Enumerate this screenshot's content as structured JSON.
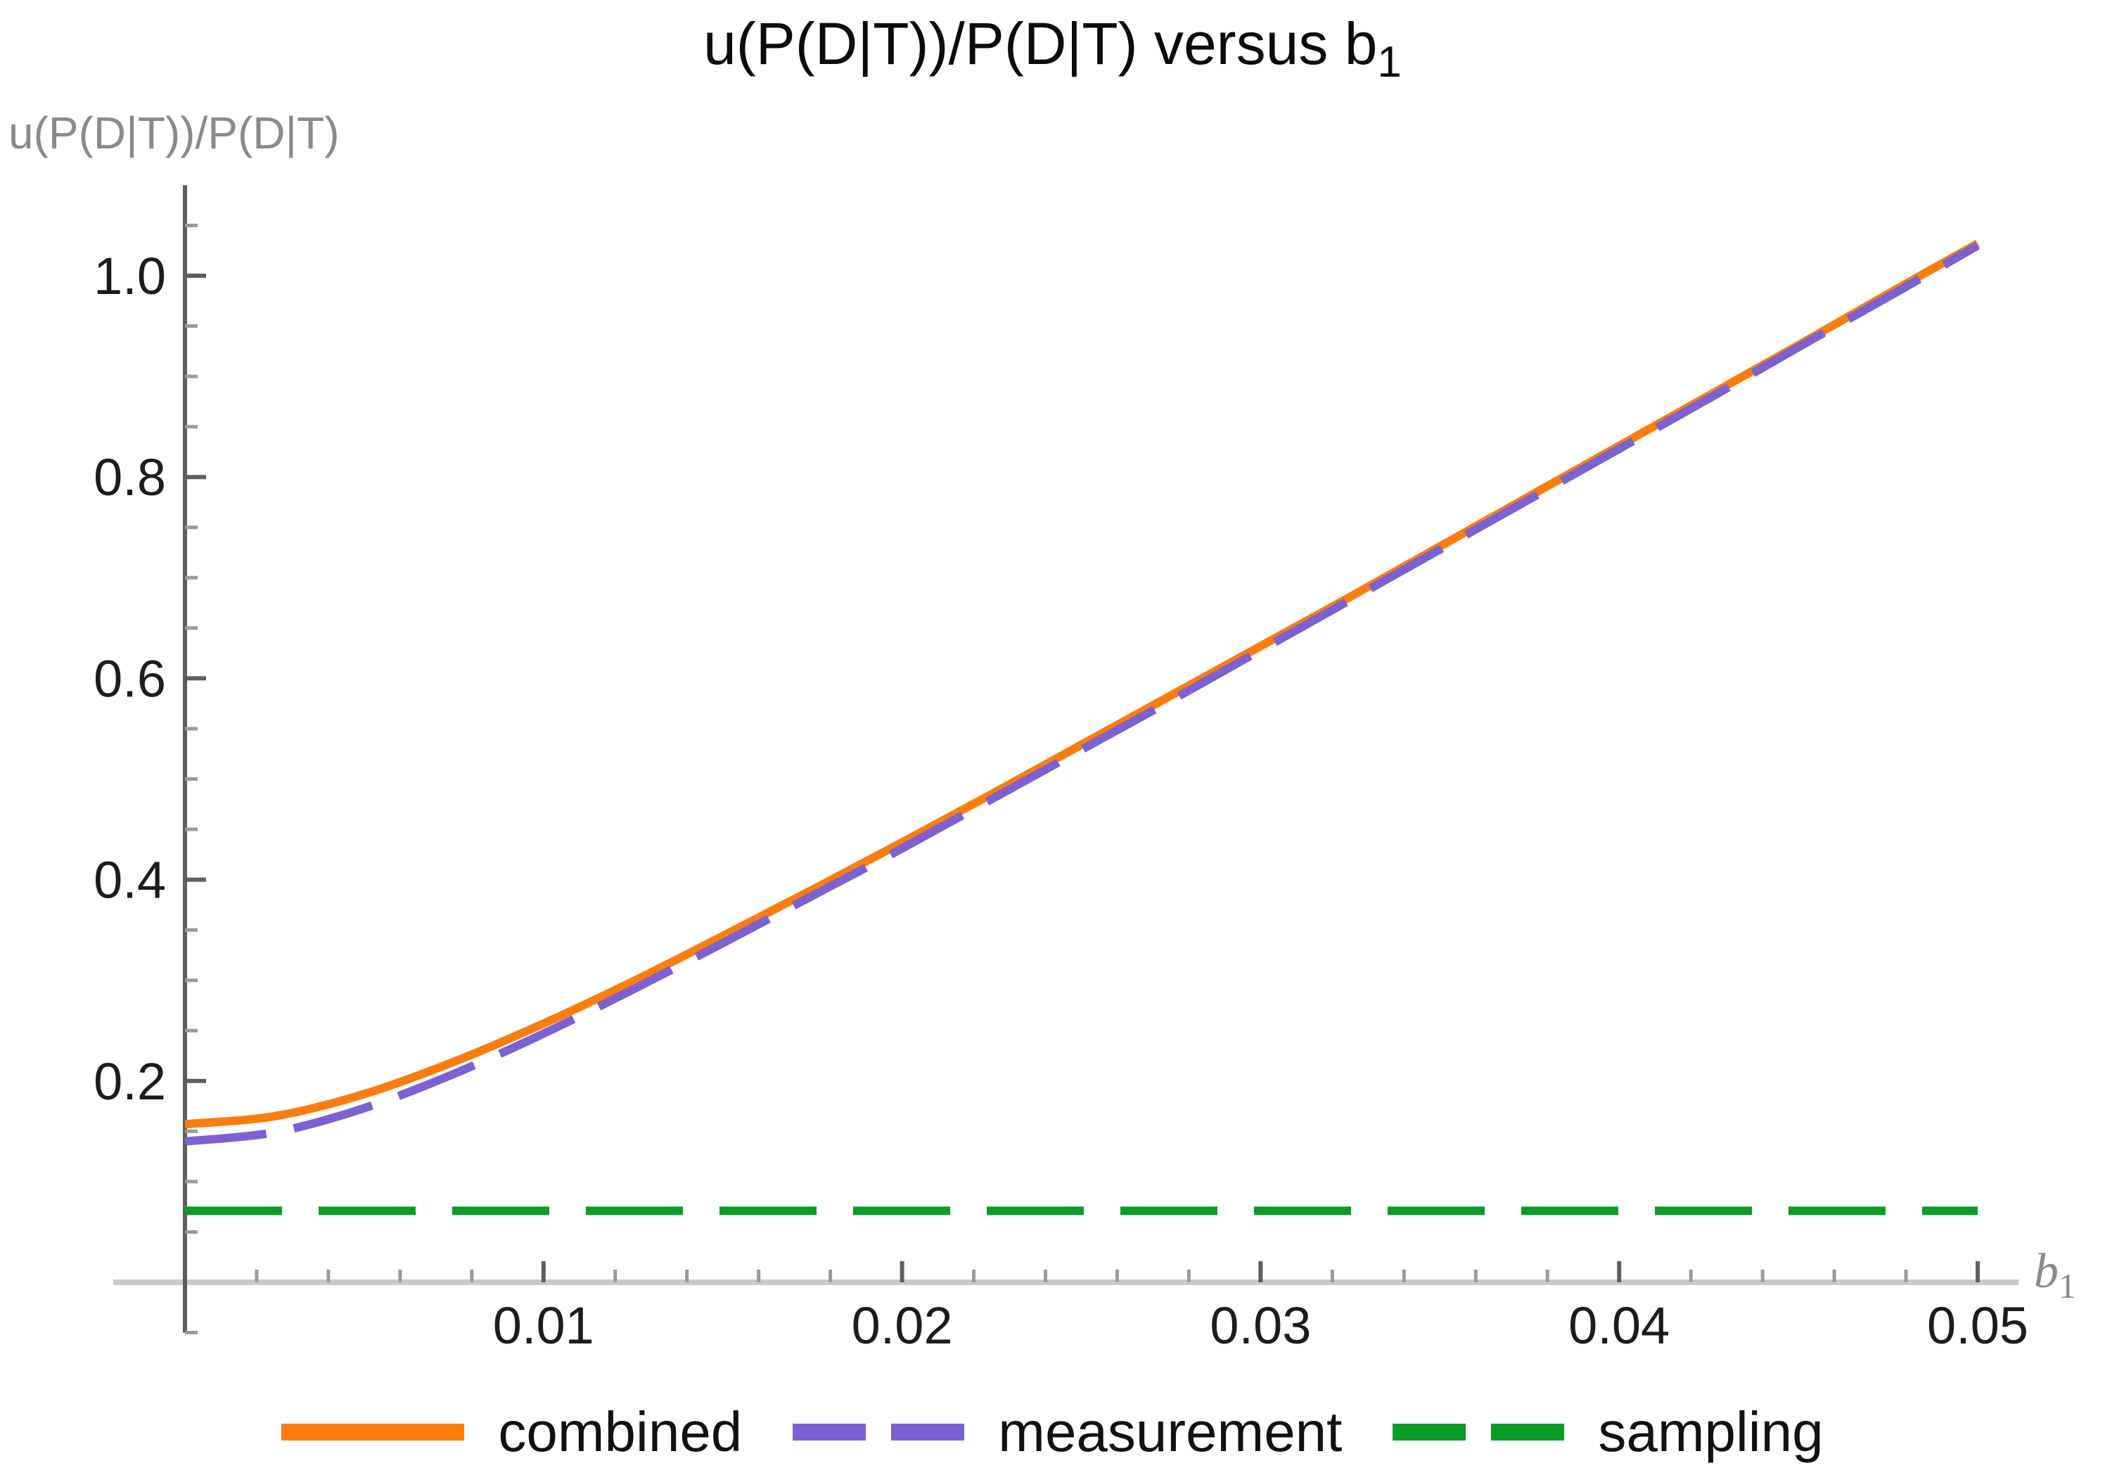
{
  "title": {
    "main": "u(P(D|T))/P(D|T) versus b",
    "sub": "1"
  },
  "y_axis_label": "u(P(D|T))/P(D|T)",
  "x_axis_label": {
    "main": "b",
    "sub": "1"
  },
  "chart_data": {
    "type": "line",
    "title": "u(P(D|T))/P(D|T) versus b_1",
    "xlabel": "b_1",
    "ylabel": "u(P(D|T))/P(D|T)",
    "xlim": [
      0,
      0.05
    ],
    "ylim": [
      -0.05,
      1.09
    ],
    "grid": false,
    "legend_position": "bottom",
    "x_ticks": [
      0.01,
      0.02,
      0.03,
      0.04,
      0.05
    ],
    "x_tick_labels": [
      "0.01",
      "0.02",
      "0.03",
      "0.04",
      "0.05"
    ],
    "x_minor_tick_step": 0.002,
    "y_ticks": [
      0.2,
      0.4,
      0.6,
      0.8,
      1.0
    ],
    "y_tick_labels": [
      "0.2",
      "0.4",
      "0.6",
      "0.8",
      "1.0"
    ],
    "y_minor_tick_step": 0.05,
    "x": [
      0,
      0.0025,
      0.005,
      0.0075,
      0.01,
      0.0125,
      0.015,
      0.0175,
      0.02,
      0.0225,
      0.025,
      0.0275,
      0.03,
      0.0325,
      0.035,
      0.0375,
      0.04,
      0.0425,
      0.045,
      0.0475,
      0.05
    ],
    "series": [
      {
        "name": "combined",
        "color": "#FA7D0E",
        "style": "solid",
        "values": [
          0.157,
          0.165,
          0.187,
          0.219,
          0.257,
          0.299,
          0.344,
          0.39,
          0.437,
          0.485,
          0.534,
          0.583,
          0.632,
          0.681,
          0.731,
          0.781,
          0.831,
          0.881,
          0.931,
          0.982,
          1.032
        ]
      },
      {
        "name": "measurement",
        "color": "#7B61D2",
        "style": "dashed",
        "values": [
          0.14,
          0.149,
          0.173,
          0.207,
          0.247,
          0.291,
          0.337,
          0.384,
          0.431,
          0.48,
          0.529,
          0.578,
          0.628,
          0.678,
          0.728,
          0.778,
          0.828,
          0.878,
          0.929,
          0.979,
          1.03
        ]
      },
      {
        "name": "sampling",
        "color": "#0B9B27",
        "style": "dashed",
        "values": [
          0.071,
          0.071,
          0.071,
          0.071,
          0.071,
          0.071,
          0.071,
          0.071,
          0.071,
          0.071,
          0.071,
          0.071,
          0.071,
          0.071,
          0.071,
          0.071,
          0.071,
          0.071,
          0.071,
          0.071,
          0.071
        ]
      }
    ]
  }
}
